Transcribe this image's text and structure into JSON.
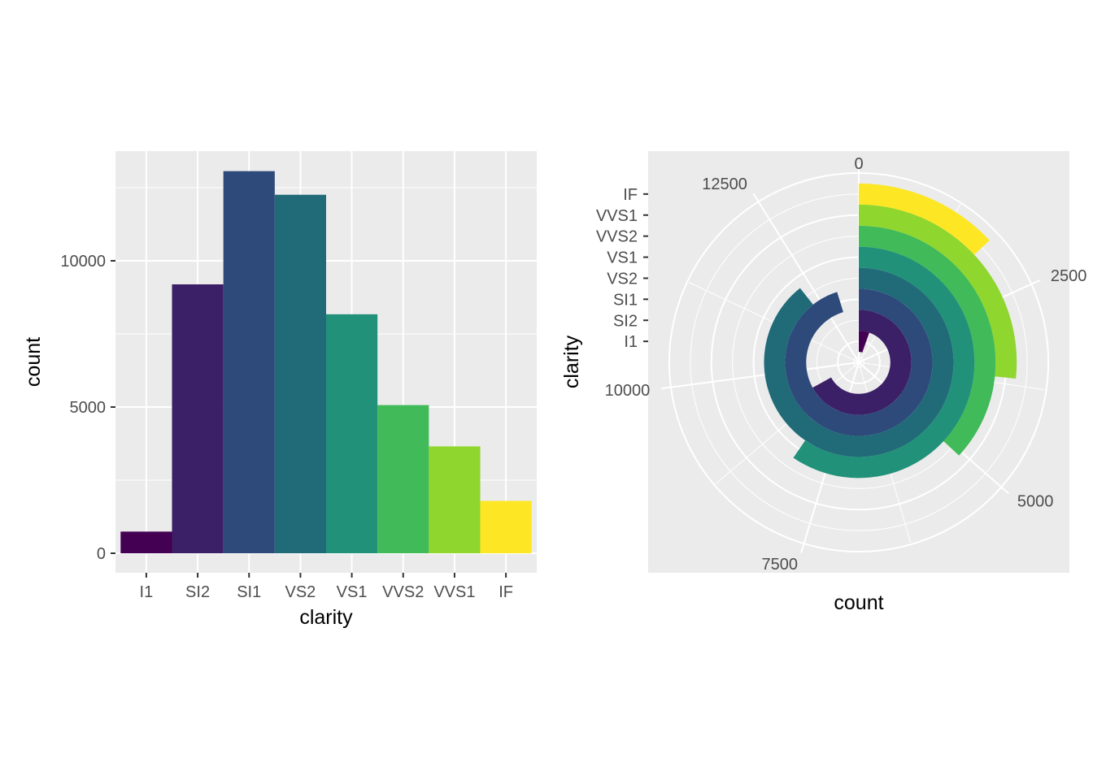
{
  "chart_data": [
    {
      "type": "bar",
      "categories": [
        "I1",
        "SI2",
        "SI1",
        "VS2",
        "VS1",
        "VVS2",
        "VVS1",
        "IF"
      ],
      "values": [
        741,
        9194,
        13065,
        12258,
        8171,
        5066,
        3655,
        1790
      ],
      "colors": [
        "#440154",
        "#3B1F67",
        "#2D4A7A",
        "#216A78",
        "#21917A",
        "#41BA59",
        "#8FD62E",
        "#FDE725"
      ],
      "title": "",
      "xlabel": "clarity",
      "ylabel": "count",
      "ylim": [
        0,
        13718
      ],
      "yticks": [
        0,
        5000,
        10000
      ],
      "panel_background": "#EBEBEB",
      "grid": true,
      "legend": "none"
    },
    {
      "type": "bar",
      "coord": "polar",
      "categories": [
        "I1",
        "SI2",
        "SI1",
        "VS2",
        "VS1",
        "VVS2",
        "VVS1",
        "IF"
      ],
      "values": [
        741,
        9194,
        13065,
        12258,
        8171,
        5066,
        3655,
        1790
      ],
      "colors": [
        "#440154",
        "#3B1F67",
        "#2D4A7A",
        "#216A78",
        "#21917A",
        "#41BA59",
        "#8FD62E",
        "#FDE725"
      ],
      "title": "",
      "xlabel": "count",
      "ylabel": "clarity",
      "theta_range": [
        0,
        13718
      ],
      "theta_ticks": [
        0,
        2500,
        5000,
        7500,
        10000,
        12500
      ],
      "panel_background": "#EBEBEB",
      "grid": true,
      "legend": "none"
    }
  ]
}
